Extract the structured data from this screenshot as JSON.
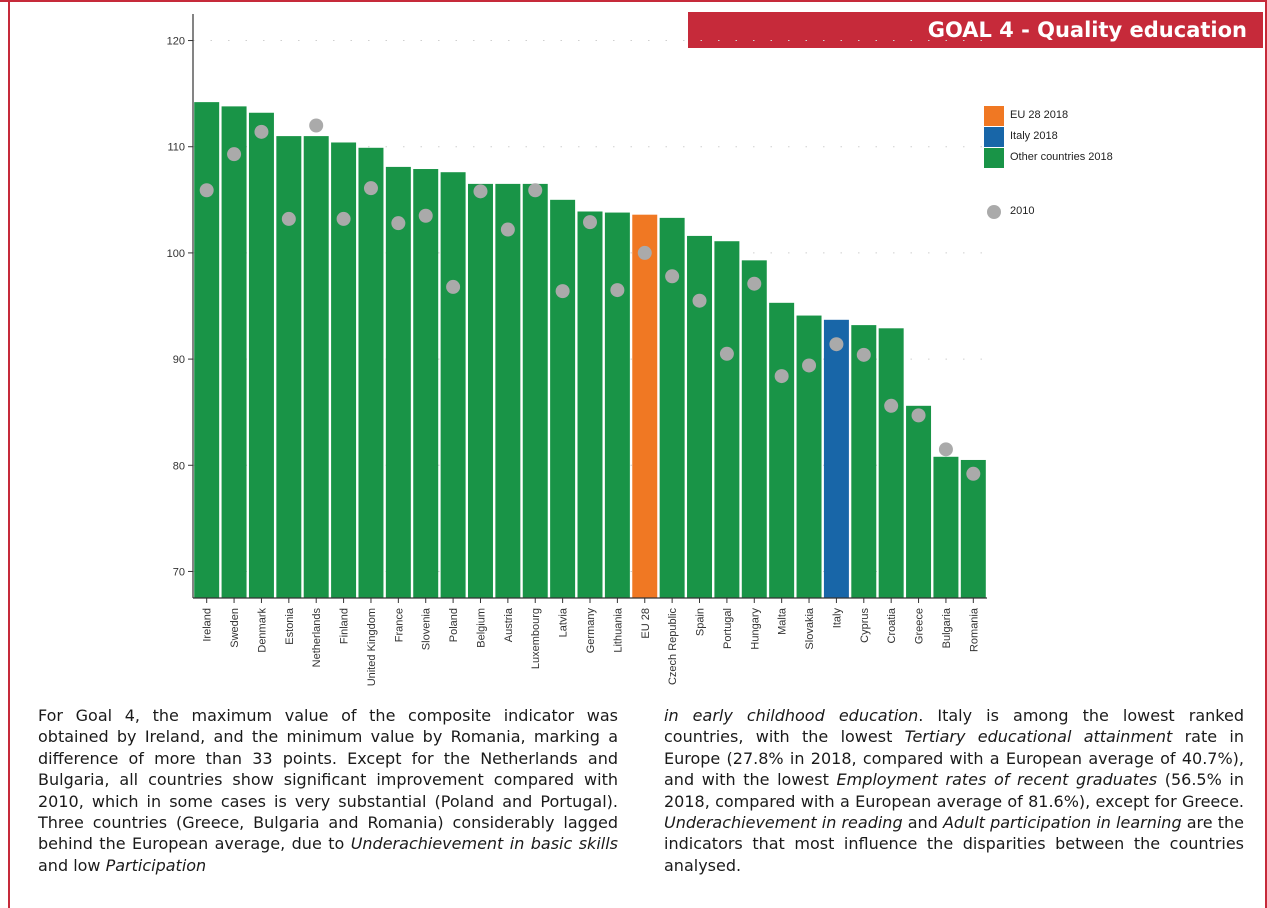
{
  "header": {
    "goal_title": "GOAL 4 - Quality education"
  },
  "legend": {
    "items": [
      {
        "label": "EU 28 2018",
        "color": "#f07823"
      },
      {
        "label": "Italy 2018",
        "color": "#1866a8"
      },
      {
        "label": "Other countries 2018",
        "color": "#199447"
      }
    ],
    "marker": {
      "label": "2010",
      "color": "#aaaaaa"
    }
  },
  "chart_data": {
    "type": "bar",
    "categories": [
      "Ireland",
      "Sweden",
      "Denmark",
      "Estonia",
      "Netherlands",
      "Finland",
      "United Kingdom",
      "France",
      "Slovenia",
      "Poland",
      "Belgium",
      "Austria",
      "Luxembourg",
      "Latvia",
      "Germany",
      "Lithuania",
      "EU 28",
      "Czech Republic",
      "Spain",
      "Portugal",
      "Hungary",
      "Malta",
      "Slovakia",
      "Italy",
      "Cyprus",
      "Croatia",
      "Greece",
      "Bulgaria",
      "Romania"
    ],
    "series": [
      {
        "name": "2018",
        "values": [
          114.2,
          113.8,
          113.2,
          111.0,
          111.0,
          110.4,
          109.9,
          108.1,
          107.9,
          107.6,
          106.5,
          106.5,
          106.5,
          105.0,
          103.9,
          103.8,
          103.6,
          103.3,
          101.6,
          101.1,
          99.3,
          95.3,
          94.1,
          93.7,
          93.2,
          92.9,
          85.6,
          80.8,
          80.5
        ]
      },
      {
        "name": "2010",
        "values": [
          105.9,
          109.3,
          111.4,
          103.2,
          112.0,
          103.2,
          106.1,
          102.8,
          103.5,
          96.8,
          105.8,
          102.2,
          105.9,
          96.4,
          102.9,
          96.5,
          100.0,
          97.8,
          95.5,
          90.5,
          97.1,
          88.4,
          89.4,
          91.4,
          90.4,
          85.6,
          84.7,
          81.5,
          79.2
        ]
      }
    ],
    "ylim": [
      67.5,
      122.5
    ],
    "yticks": [
      70,
      80,
      90,
      100,
      110,
      120
    ],
    "grid": true
  },
  "text": {
    "left": [
      {
        "t": "For Goal 4, the maximum value of the composite indicator was obtained by Ireland, and the minimum value by Romania, marking a difference of more than 33 points. Except for the Netherlands and Bulgaria, all countries show significant improvement compared with 2010, which in some cases is very substantial (Poland and Portugal). Three countries (Greece, Bulgaria and Romania) considerably lagged behind the European average, due to "
      },
      {
        "t": "Underachievement in basic skills",
        "i": true
      },
      {
        "t": " and low "
      },
      {
        "t": "Participation",
        "i": true
      }
    ],
    "right": [
      {
        "t": "in early childhood education",
        "i": true
      },
      {
        "t": ". Italy is among the lowest ranked countries, with the lowest "
      },
      {
        "t": "Tertiary educational attainment",
        "i": true
      },
      {
        "t": " rate in Europe (27.8% in 2018, compared with a European average of 40.7%), and with the lowest "
      },
      {
        "t": "Employment rates of recent graduates",
        "i": true
      },
      {
        "t": " (56.5% in 2018, compared with a European average of 81.6%), except for Greece. "
      },
      {
        "t": "Underachievement in reading",
        "i": true
      },
      {
        "t": " and "
      },
      {
        "t": "Adult participation in learning",
        "i": true
      },
      {
        "t": " are the indicators that most influence the disparities between the countries analysed."
      }
    ]
  }
}
